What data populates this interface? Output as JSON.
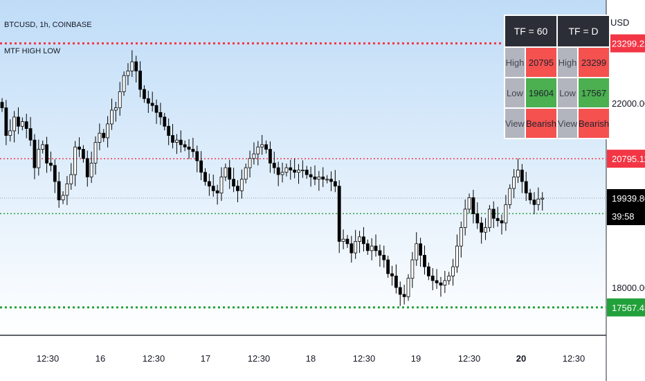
{
  "header": {
    "symbol": "BTCUSD, 1h, COINBASE",
    "indicator": "MTF HIGH LOW"
  },
  "colors": {
    "bg_top": "#bfdcf7",
    "bg_bottom": "#ffffff",
    "red_line": "#f23645",
    "green_line": "#22a13a",
    "price_line": "#9598a1"
  },
  "table": {
    "headers": [
      "TF = 60",
      "TF = D"
    ],
    "rows": [
      {
        "label": "High",
        "values": [
          "20795",
          "23299"
        ],
        "style": "red"
      },
      {
        "label": "Low",
        "values": [
          "19604",
          "17567"
        ],
        "style": "grn"
      },
      {
        "label": "View",
        "values": [
          "Bearish",
          "Bearish"
        ],
        "style": "red"
      }
    ]
  },
  "chart_data": {
    "type": "candlestick",
    "title": "",
    "xlabel": "",
    "ylabel": "USD",
    "ylim": [
      17100,
      23900
    ],
    "y_ticks": [
      18000.0,
      22000.0
    ],
    "x_ticks": [
      "12:30",
      "16",
      "12:30",
      "17",
      "12:30",
      "18",
      "12:30",
      "19",
      "12:30",
      "20",
      "12:30"
    ],
    "x_ticks_bold": [
      false,
      false,
      false,
      false,
      false,
      false,
      false,
      false,
      false,
      true,
      false
    ],
    "levels": [
      {
        "value": 23299.22,
        "label": "23299.22",
        "color": "#f23645",
        "style": "dotted-thick"
      },
      {
        "value": 20795.11,
        "label": "20795.11",
        "color": "#f23645",
        "style": "dotted"
      },
      {
        "value": 19603.8,
        "label": "19603.80",
        "color": "#22a13a",
        "style": "dotted"
      },
      {
        "value": 17567.45,
        "label": "17567.45",
        "color": "#22a13a",
        "style": "dotted-thick"
      }
    ],
    "last_price": {
      "value": 19939.8,
      "label": "19939.80",
      "countdown": "39:58"
    },
    "close": [
      21900,
      21300,
      21400,
      21700,
      21500,
      21600,
      21450,
      21200,
      20600,
      21000,
      21100,
      20700,
      20650,
      20300,
      19900,
      20000,
      20250,
      20450,
      21050,
      21000,
      20800,
      20400,
      20700,
      21150,
      21350,
      21250,
      21550,
      21850,
      21900,
      22250,
      22600,
      22700,
      22900,
      22700,
      22300,
      22100,
      22000,
      21950,
      21800,
      21700,
      21500,
      21300,
      21150,
      21200,
      21100,
      21050,
      21000,
      20950,
      20750,
      20500,
      20300,
      20200,
      20100,
      20050,
      20400,
      20600,
      20350,
      20200,
      20100,
      20350,
      20600,
      20800,
      20900,
      21050,
      21100,
      21000,
      20700,
      20600,
      20450,
      20500,
      20600,
      20550,
      20500,
      20550,
      20550,
      20450,
      20400,
      20350,
      20400,
      20350,
      20350,
      20300,
      20200,
      19000,
      19050,
      18950,
      18750,
      19000,
      19100,
      18950,
      18800,
      18900,
      18800,
      18700,
      18600,
      18300,
      18250,
      18000,
      17850,
      17800,
      18200,
      18600,
      18950,
      18700,
      18450,
      18250,
      18150,
      18100,
      18050,
      18150,
      18250,
      18450,
      18900,
      19300,
      19700,
      19950,
      19600,
      19400,
      19200,
      19300,
      19700,
      19500,
      19450,
      19400,
      19800,
      20150,
      20400,
      20550,
      20300,
      20050,
      19900,
      19800,
      19920,
      19940
    ],
    "ohlc_note": "candles derived from close series; open = previous close"
  }
}
